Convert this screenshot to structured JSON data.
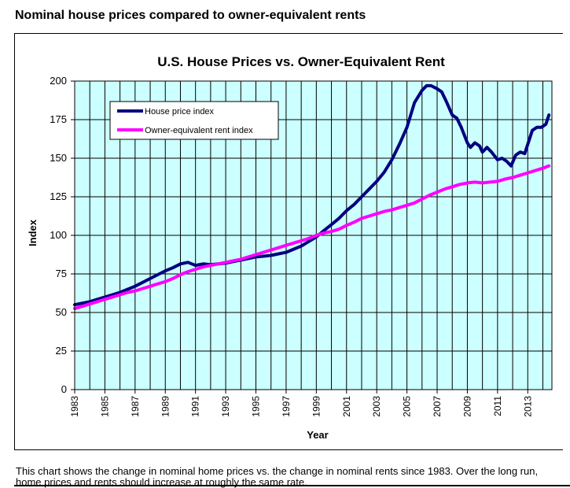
{
  "page": {
    "heading": "Nominal house prices compared to owner-equivalent rents",
    "caption": "This chart shows the change in nominal home prices vs. the change in nominal rents since 1983. Over the long run, home prices and rents should increase at roughly the same rate."
  },
  "colors": {
    "plot_background": "#ccffff",
    "house_series": "#000080",
    "rent_series": "#ff00ff",
    "grid": "#000000"
  },
  "chart_data": {
    "type": "line",
    "title": "U.S. House Prices vs. Owner-Equivalent Rent",
    "xlabel": "Year",
    "ylabel": "Index",
    "xlim": [
      1983,
      2014.6
    ],
    "ylim": [
      0,
      200
    ],
    "yticks": [
      0,
      25,
      50,
      75,
      100,
      125,
      150,
      175,
      200
    ],
    "xticks": [
      "1983",
      "1985",
      "1987",
      "1989",
      "1991",
      "1993",
      "1995",
      "1997",
      "1999",
      "2001",
      "2003",
      "2005",
      "2007",
      "2009",
      "2011",
      "2013"
    ],
    "grid": "vertical and horizontal",
    "legend_position": "top-left",
    "series": [
      {
        "name": "House price index",
        "x": [
          1983,
          1983.5,
          1984,
          1984.5,
          1985,
          1985.5,
          1986,
          1986.5,
          1987,
          1987.5,
          1988,
          1988.5,
          1989,
          1989.5,
          1990,
          1990.5,
          1991,
          1991.5,
          1992,
          1992.5,
          1993,
          1993.5,
          1994,
          1994.5,
          1995,
          1995.5,
          1996,
          1996.5,
          1997,
          1997.5,
          1998,
          1998.5,
          1999,
          1999.5,
          2000,
          2000.5,
          2001,
          2001.5,
          2002,
          2002.5,
          2003,
          2003.5,
          2004,
          2004.5,
          2005,
          2005.5,
          2006,
          2006.3,
          2006.6,
          2007,
          2007.3,
          2007.6,
          2008,
          2008.3,
          2008.6,
          2009,
          2009.2,
          2009.5,
          2009.8,
          2010,
          2010.3,
          2010.6,
          2011,
          2011.3,
          2011.6,
          2011.9,
          2012.2,
          2012.5,
          2012.8,
          2013.1,
          2013.3,
          2013.6,
          2013.9,
          2014.2,
          2014.4
        ],
        "values": [
          55,
          56,
          57,
          58.5,
          60,
          61.5,
          63,
          65,
          67,
          69.5,
          72,
          74.5,
          77,
          79,
          81.5,
          82.5,
          80.5,
          81.5,
          81,
          81.5,
          82,
          83,
          84,
          85,
          86,
          86.5,
          87,
          88,
          89,
          91,
          93,
          96,
          99,
          103,
          107,
          111,
          116,
          120,
          125,
          130,
          135,
          141,
          149,
          159,
          170,
          186,
          194,
          197,
          197,
          195,
          193,
          187,
          178,
          176,
          170,
          160,
          157,
          160,
          158,
          154,
          157,
          154,
          149,
          150,
          148,
          145,
          152,
          154,
          153,
          162,
          168,
          170,
          170,
          172,
          178
        ]
      },
      {
        "name": "Owner-equivalent rent index",
        "x": [
          1983,
          1983.5,
          1984,
          1984.5,
          1985,
          1985.5,
          1986,
          1986.5,
          1987,
          1987.5,
          1988,
          1988.5,
          1989,
          1989.5,
          1990,
          1990.5,
          1991,
          1991.5,
          1992,
          1992.5,
          1993,
          1993.5,
          1994,
          1994.5,
          1995,
          1995.5,
          1996,
          1996.5,
          1997,
          1997.5,
          1998,
          1998.5,
          1999,
          1999.5,
          2000,
          2000.5,
          2001,
          2001.5,
          2002,
          2002.5,
          2003,
          2003.5,
          2004,
          2004.5,
          2005,
          2005.5,
          2006,
          2006.5,
          2007,
          2007.5,
          2008,
          2008.5,
          2009,
          2009.5,
          2010,
          2010.5,
          2011,
          2011.5,
          2012,
          2012.5,
          2013,
          2013.5,
          2014,
          2014.4
        ],
        "values": [
          52.5,
          54,
          55.5,
          57,
          58.5,
          60,
          61.5,
          63,
          64,
          65.5,
          67,
          68.5,
          70,
          72,
          74.5,
          76.5,
          78,
          79.5,
          80.5,
          81.5,
          82.5,
          83.5,
          84.5,
          86,
          87.5,
          89,
          90.5,
          92,
          93.5,
          95,
          96.5,
          98,
          100,
          101.5,
          102.5,
          104,
          106.5,
          108.5,
          111,
          112.5,
          114,
          115.5,
          116.5,
          118,
          119.5,
          121,
          123.5,
          126,
          128,
          130,
          131.5,
          133,
          134,
          134.5,
          134,
          134.5,
          135,
          136.5,
          137.5,
          139,
          140.5,
          142,
          143.5,
          145
        ]
      }
    ]
  }
}
